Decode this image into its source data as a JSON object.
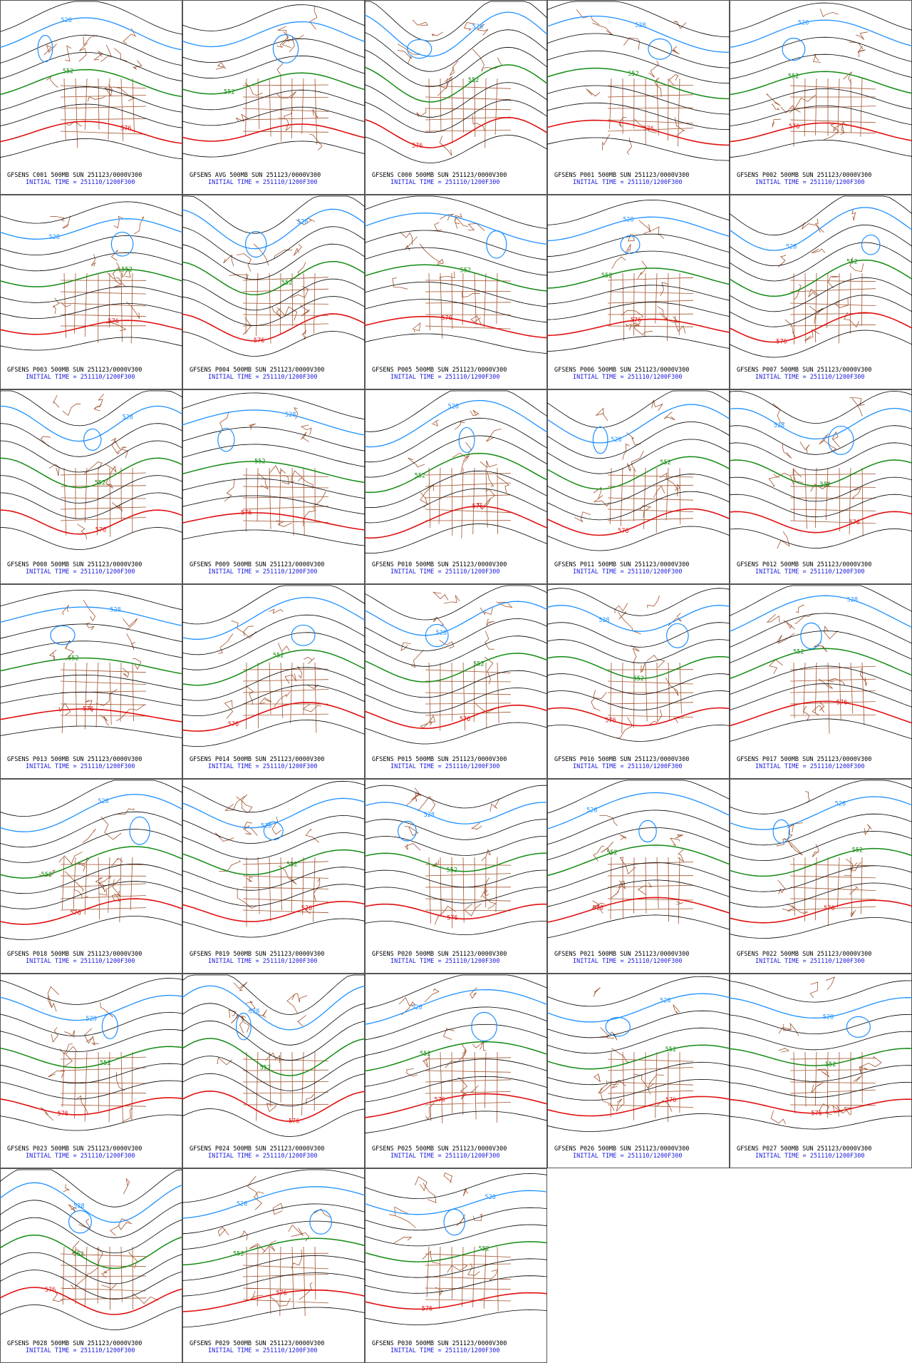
{
  "panels": [
    {
      "title": "GFSENS C001 500MB SUN 251123/0000V300",
      "initial": "INITIAL TIME = 251110/1200F300",
      "contour_labels": [
        "528",
        "552",
        "576"
      ]
    },
    {
      "title": "GFSENS AVG 500MB SUN 251123/0000V300",
      "initial": "INITIAL TIME = 251110/1200F300",
      "contour_labels": [
        "552"
      ]
    },
    {
      "title": "GFSENS C000 500MB SUN 251123/0000V300",
      "initial": "INITIAL TIME = 251110/1200F300",
      "contour_labels": [
        "528",
        "552",
        "576"
      ]
    },
    {
      "title": "GFSENS P001 500MB SUN 251123/0000V300",
      "initial": "INITIAL TIME = 251110/1200F300",
      "contour_labels": [
        "528",
        "552",
        "576"
      ]
    },
    {
      "title": "GFSENS P002 500MB SUN 251123/0000V300",
      "initial": "INITIAL TIME = 251110/1200F300",
      "contour_labels": [
        "528",
        "552",
        "576"
      ]
    },
    {
      "title": "GFSENS P003 500MB SUN 251123/0000V300",
      "initial": "INITIAL TIME = 251110/1200F300",
      "contour_labels": [
        "528",
        "552",
        "576"
      ]
    },
    {
      "title": "GFSENS P004 500MB SUN 251123/0000V300",
      "initial": "INITIAL TIME = 251110/1200F300",
      "contour_labels": [
        "528",
        "552",
        "576"
      ]
    },
    {
      "title": "GFSENS P005 500MB SUN 251123/0000V300",
      "initial": "INITIAL TIME = 251110/1200F300",
      "contour_labels": [
        "552",
        "576"
      ]
    },
    {
      "title": "GFSENS P006 500MB SUN 251123/0000V300",
      "initial": "INITIAL TIME = 251110/1200F300",
      "contour_labels": [
        "528",
        "552",
        "576"
      ]
    },
    {
      "title": "GFSENS P007 500MB SUN 251123/0000V300",
      "initial": "INITIAL TIME = 251110/1200F300",
      "contour_labels": [
        "528",
        "552",
        "576"
      ]
    },
    {
      "title": "GFSENS P008 500MB SUN 251123/0000V300",
      "initial": "INITIAL TIME = 251110/1200F300",
      "contour_labels": [
        "528",
        "552",
        "576"
      ]
    },
    {
      "title": "GFSENS P009 500MB SUN 251123/0000V300",
      "initial": "INITIAL TIME = 251110/1200F300",
      "contour_labels": [
        "528",
        "552",
        "576"
      ]
    },
    {
      "title": "GFSENS P010 500MB SUN 251123/0000V300",
      "initial": "INITIAL TIME = 251110/1200F300",
      "contour_labels": [
        "528",
        "552",
        "576"
      ]
    },
    {
      "title": "GFSENS P011 500MB SUN 251123/0000V300",
      "initial": "INITIAL TIME = 251110/1200F300",
      "contour_labels": [
        "528",
        "552",
        "576"
      ]
    },
    {
      "title": "GFSENS P012 500MB SUN 251123/0000V300",
      "initial": "INITIAL TIME = 251110/1200F300",
      "contour_labels": [
        "528",
        "552",
        "576"
      ]
    },
    {
      "title": "GFSENS P013 500MB SUN 251123/0000V300",
      "initial": "INITIAL TIME = 251110/1200F300",
      "contour_labels": [
        "528",
        "552",
        "576"
      ]
    },
    {
      "title": "GFSENS P014 500MB SUN 251123/0000V300",
      "initial": "INITIAL TIME = 251110/1200F300",
      "contour_labels": [
        "552",
        "576"
      ]
    },
    {
      "title": "GFSENS P015 500MB SUN 251123/0000V300",
      "initial": "INITIAL TIME = 251110/1200F300",
      "contour_labels": [
        "528",
        "552",
        "576"
      ]
    },
    {
      "title": "GFSENS P016 500MB SUN 251123/0000V300",
      "initial": "INITIAL TIME = 251110/1200F300",
      "contour_labels": [
        "528",
        "552",
        "576"
      ]
    },
    {
      "title": "GFSENS P017 500MB SUN 251123/0000V300",
      "initial": "INITIAL TIME = 251110/1200F300",
      "contour_labels": [
        "528",
        "552",
        "576"
      ]
    },
    {
      "title": "GFSENS P018 500MB SUN 251123/0000V300",
      "initial": "INITIAL TIME = 251110/1200F300",
      "contour_labels": [
        "528",
        "552",
        "576"
      ]
    },
    {
      "title": "GFSENS P019 500MB SUN 251123/0000V300",
      "initial": "INITIAL TIME = 251110/1200F300",
      "contour_labels": [
        "528",
        "552",
        "576"
      ]
    },
    {
      "title": "GFSENS P020 500MB SUN 251123/0000V300",
      "initial": "INITIAL TIME = 251110/1200F300",
      "contour_labels": [
        "528",
        "552",
        "576"
      ]
    },
    {
      "title": "GFSENS P021 500MB SUN 251123/0000V300",
      "initial": "INITIAL TIME = 251110/1200F300",
      "contour_labels": [
        "528",
        "552",
        "576"
      ]
    },
    {
      "title": "GFSENS P022 500MB SUN 251123/0000V300",
      "initial": "INITIAL TIME = 251110/1200F300",
      "contour_labels": [
        "528",
        "552",
        "576"
      ]
    },
    {
      "title": "GFSENS P023 500MB SUN 251123/0000V300",
      "initial": "INITIAL TIME = 251110/1200F300",
      "contour_labels": [
        "528",
        "552",
        "576"
      ]
    },
    {
      "title": "GFSENS P024 500MB SUN 251123/0000V300",
      "initial": "INITIAL TIME = 251110/1200F300",
      "contour_labels": [
        "528",
        "552",
        "576"
      ]
    },
    {
      "title": "GFSENS P025 500MB SUN 251123/0000V300",
      "initial": "INITIAL TIME = 251110/1200F300",
      "contour_labels": [
        "528",
        "552",
        "576"
      ]
    },
    {
      "title": "GFSENS P026 500MB SUN 251123/0000V300",
      "initial": "INITIAL TIME = 251110/1200F300",
      "contour_labels": [
        "528",
        "552",
        "576"
      ]
    },
    {
      "title": "GFSENS P027 500MB SUN 251123/0000V300",
      "initial": "INITIAL TIME = 251110/1200F300",
      "contour_labels": [
        "528",
        "552",
        "576"
      ]
    },
    {
      "title": "GFSENS P028 500MB SUN 251123/0000V300",
      "initial": "INITIAL TIME = 251110/1200F300",
      "contour_labels": [
        "528",
        "552",
        "576"
      ]
    },
    {
      "title": "GFSENS P029 500MB SUN 251123/0000V300",
      "initial": "INITIAL TIME = 251110/1200F300",
      "contour_labels": [
        "528",
        "552",
        "576"
      ]
    },
    {
      "title": "GFSENS P030 500MB SUN 251123/0000V300",
      "initial": "INITIAL TIME = 251110/1200F300",
      "contour_labels": [
        "528",
        "552",
        "576"
      ]
    }
  ]
}
